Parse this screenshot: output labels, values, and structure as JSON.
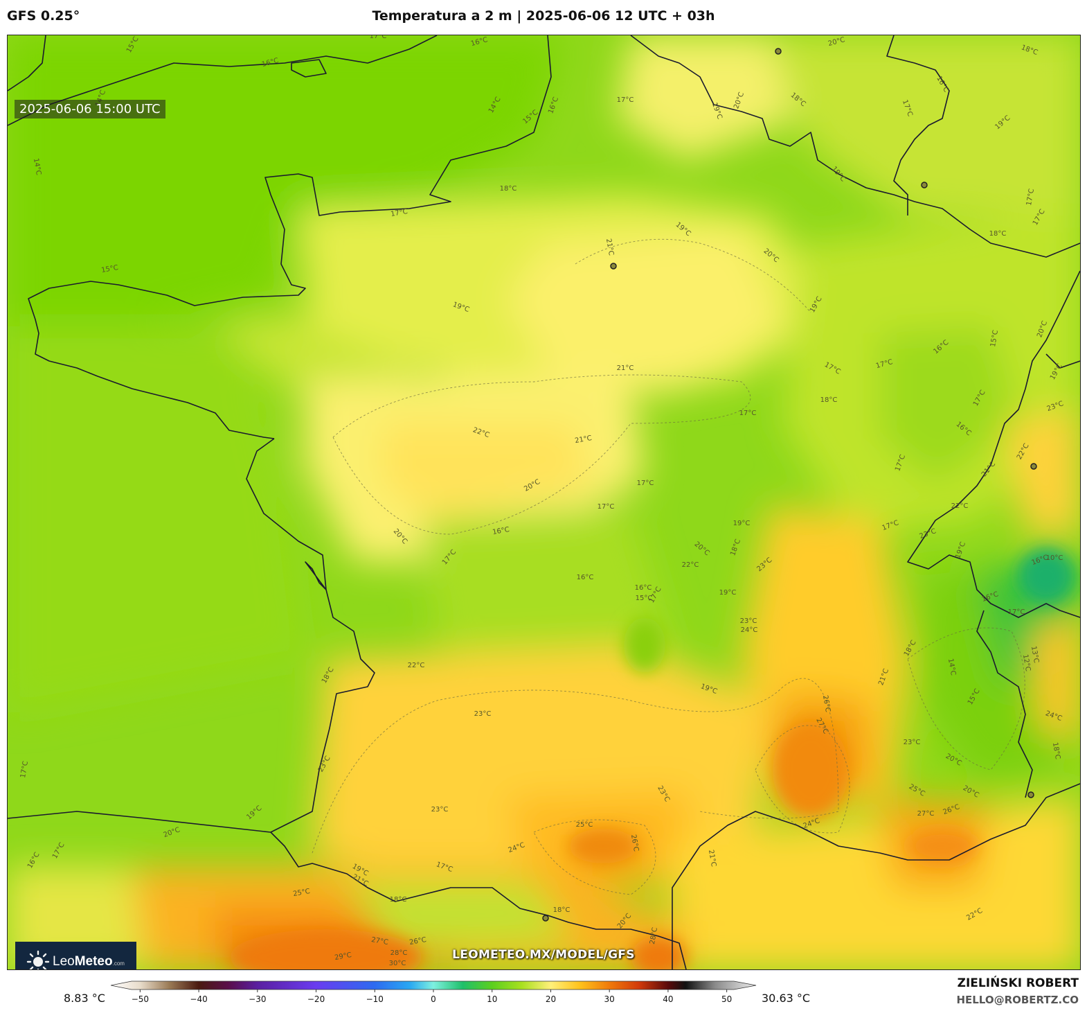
{
  "header": {
    "model": "GFS 0.25°",
    "title": "Temperatura a 2 m | 2025-06-06 12 UTC + 03h"
  },
  "map": {
    "valid_time": "2025-06-06 15:00 UTC",
    "watermark": "LEOMETEO.MX/MODEL/GFS",
    "logo": {
      "brand_light": "Leo",
      "brand_bold": "Meteo",
      "suffix": ".com"
    },
    "contour_labels": [
      "14°C",
      "15°C",
      "16°C",
      "17°C",
      "18°C",
      "19°C",
      "20°C",
      "21°C",
      "22°C",
      "23°C",
      "24°C",
      "25°C",
      "26°C",
      "27°C",
      "28°C",
      "29°C",
      "30°C",
      "12°C",
      "13°C",
      "10°C"
    ]
  },
  "colorbar": {
    "min_label": "8.83 °C",
    "max_label": "30.63 °C",
    "ticks": [
      "−50",
      "−40",
      "−30",
      "−20",
      "−10",
      "0",
      "10",
      "20",
      "30",
      "40",
      "50"
    ],
    "range": [
      -55,
      55
    ],
    "stops": [
      {
        "t": -55,
        "c": "#ffffff"
      },
      {
        "t": -50,
        "c": "#e8dccb"
      },
      {
        "t": -45,
        "c": "#9a7a55"
      },
      {
        "t": -40,
        "c": "#4a1a10"
      },
      {
        "t": -35,
        "c": "#5a0f4a"
      },
      {
        "t": -30,
        "c": "#5a1fa0"
      },
      {
        "t": -20,
        "c": "#6a3cf0"
      },
      {
        "t": -10,
        "c": "#2d6bf0"
      },
      {
        "t": -4,
        "c": "#2aa8f2"
      },
      {
        "t": 0,
        "c": "#7ef0e0"
      },
      {
        "t": 5,
        "c": "#1fc06a"
      },
      {
        "t": 10,
        "c": "#5ccf1f"
      },
      {
        "t": 15,
        "c": "#a8e01f"
      },
      {
        "t": 20,
        "c": "#fff07a"
      },
      {
        "t": 25,
        "c": "#ffc21a"
      },
      {
        "t": 30,
        "c": "#f07a0a"
      },
      {
        "t": 35,
        "c": "#d23a0a"
      },
      {
        "t": 40,
        "c": "#5a0a0a"
      },
      {
        "t": 43,
        "c": "#111111"
      },
      {
        "t": 48,
        "c": "#8a8a8a"
      },
      {
        "t": 55,
        "c": "#eeeeee"
      }
    ]
  },
  "credits": {
    "author": "ZIELIŃSKI ROBERT",
    "email": "HELLO@ROBERTZ.CO"
  }
}
